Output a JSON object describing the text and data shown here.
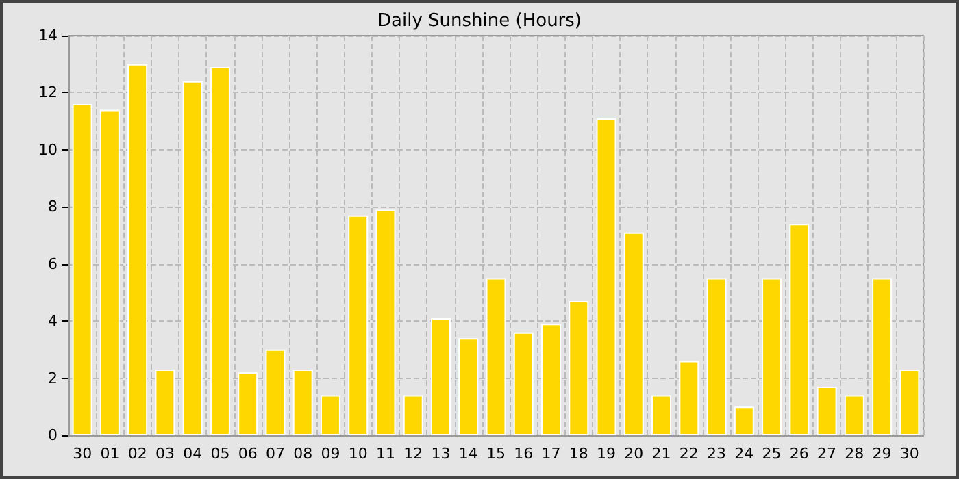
{
  "chart_data": {
    "type": "bar",
    "title": "Daily Sunshine (Hours)",
    "categories": [
      "30",
      "01",
      "02",
      "03",
      "04",
      "05",
      "06",
      "07",
      "08",
      "09",
      "10",
      "11",
      "12",
      "13",
      "14",
      "15",
      "16",
      "17",
      "18",
      "19",
      "20",
      "21",
      "22",
      "23",
      "24",
      "25",
      "26",
      "27",
      "28",
      "29",
      "30"
    ],
    "values": [
      11.6,
      11.4,
      13.0,
      2.3,
      12.4,
      12.9,
      2.2,
      3.0,
      2.3,
      1.4,
      7.7,
      7.9,
      1.4,
      4.1,
      3.4,
      5.5,
      3.6,
      3.9,
      4.7,
      11.1,
      7.1,
      1.4,
      2.6,
      5.5,
      1.0,
      5.5,
      7.4,
      1.7,
      1.4,
      5.5,
      2.3
    ],
    "color": "#ffd700",
    "ylim": [
      0,
      14
    ],
    "yticks": [
      0,
      2,
      4,
      6,
      8,
      10,
      12,
      14
    ],
    "grid": true
  }
}
